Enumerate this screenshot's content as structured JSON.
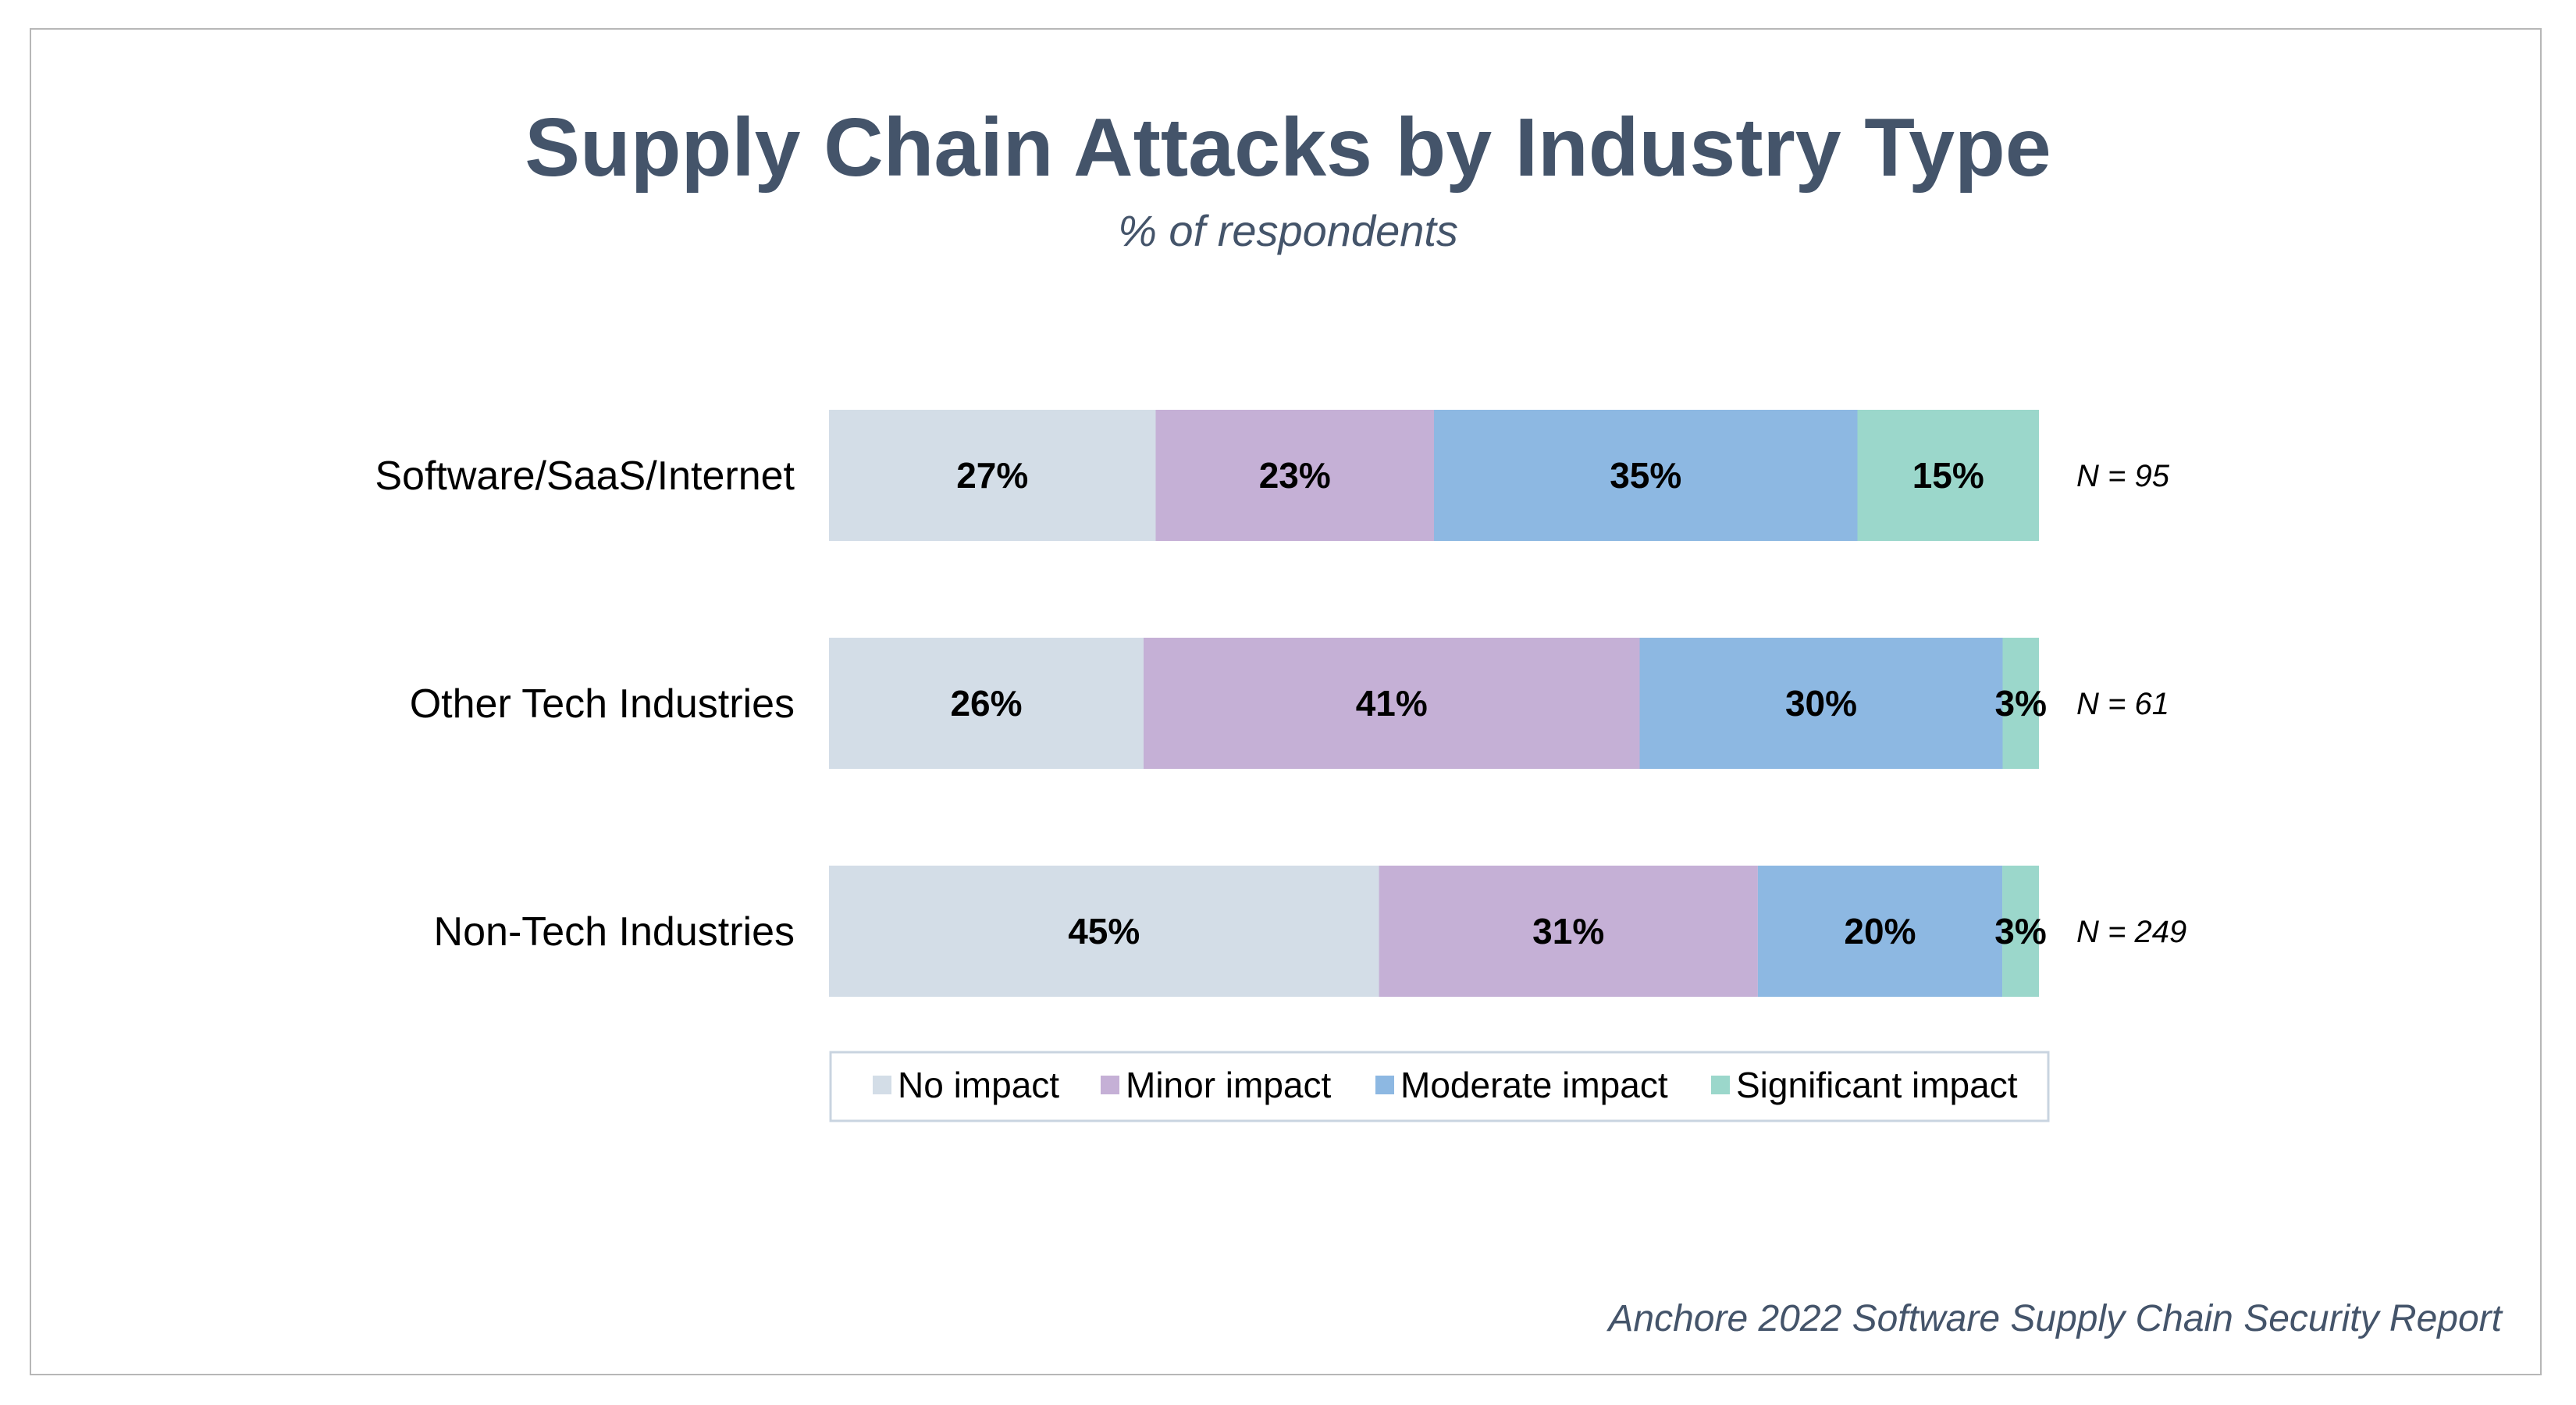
{
  "chart_data": {
    "type": "bar",
    "orientation": "horizontal",
    "stacked": true,
    "title": "Supply Chain Attacks by Industry Type",
    "subtitle": "% of respondents",
    "categories": [
      "Software/SaaS/Internet",
      "Other Tech Industries",
      "Non-Tech Industries"
    ],
    "sample_sizes": [
      "N = 95",
      "N = 61",
      "N = 249"
    ],
    "series": [
      {
        "name": "No impact",
        "color": "#d3dde7",
        "values": [
          27,
          26,
          45
        ],
        "labels": [
          "27%",
          "26%",
          "45%"
        ]
      },
      {
        "name": "Minor impact",
        "color": "#c5b0d6",
        "values": [
          23,
          41,
          31
        ],
        "labels": [
          "23%",
          "41%",
          "31%"
        ]
      },
      {
        "name": "Moderate impact",
        "color": "#8db8e2",
        "values": [
          35,
          30,
          20
        ],
        "labels": [
          "35%",
          "30%",
          "20%"
        ]
      },
      {
        "name": "Significant impact",
        "color": "#9bd7cb",
        "values": [
          15,
          3,
          3
        ],
        "labels": [
          "15%",
          "3%",
          "3%"
        ]
      }
    ],
    "xlim": [
      0,
      100
    ],
    "grid": false,
    "legend_position": "bottom",
    "source": "Anchore 2022 Software Supply Chain Security Report"
  }
}
